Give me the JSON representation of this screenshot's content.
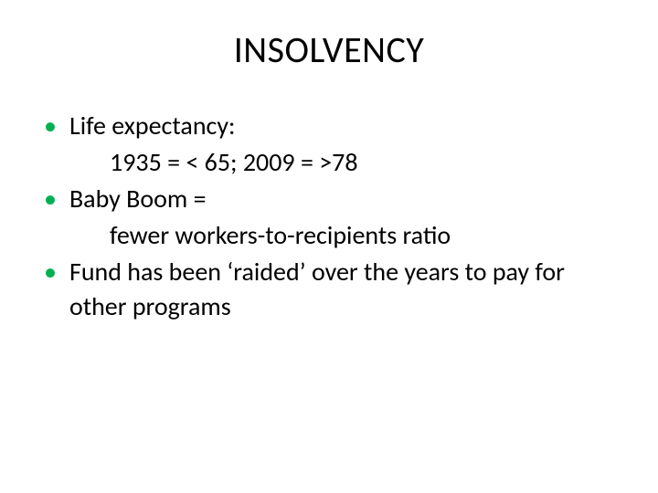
{
  "slide": {
    "title": "INSOLVENCY",
    "title_color": "#000000",
    "title_fontsize": 40,
    "bullet_color": "#00b050",
    "text_color": "#000000",
    "text_fontsize": 28,
    "background_color": "#ffffff",
    "items": [
      {
        "text": "Life expectancy:",
        "sub": "1935 = < 65; 2009 = >78"
      },
      {
        "text": "Baby Boom =",
        "sub": "fewer workers-to-recipients ratio"
      },
      {
        "text": "Fund has been ‘raided’ over the years to pay for other programs",
        "sub": null
      }
    ]
  }
}
